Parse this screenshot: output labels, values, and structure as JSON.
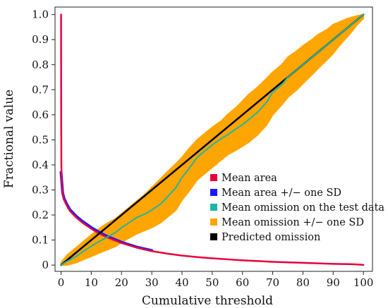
{
  "chart_data": {
    "type": "line",
    "xlabel": "Cumulative  threshold",
    "ylabel": "Fractional value",
    "xlim": [
      -2,
      103
    ],
    "ylim": [
      -0.025,
      1.03
    ],
    "xticks": [
      0,
      10,
      20,
      30,
      40,
      50,
      60,
      70,
      80,
      90,
      100
    ],
    "yticks": [
      0,
      0.1,
      0.2,
      0.3,
      0.4,
      0.5,
      0.6,
      0.7,
      0.8,
      0.9,
      1.0
    ],
    "xtick_labels": [
      "0",
      "10",
      "20",
      "30",
      "40",
      "50",
      "60",
      "70",
      "80",
      "90",
      "100"
    ],
    "ytick_labels": [
      "0",
      "0.1",
      "0.2",
      "0.3",
      "0.4",
      "0.5",
      "0.6",
      "0.7",
      "0.8",
      "0.9",
      "1.0"
    ],
    "grid": false,
    "legend_position": "lower-right",
    "series": [
      {
        "name": "Mean area",
        "color": "#e8003a",
        "x": [
          0,
          0.02,
          0.05,
          0.1,
          0.2,
          0.3,
          0.5,
          1,
          2,
          3,
          5,
          7,
          10,
          12,
          15,
          20,
          25,
          30,
          35,
          40,
          45,
          50,
          55,
          60,
          65,
          70,
          75,
          80,
          85,
          90,
          95,
          97,
          100
        ],
        "y": [
          1.0,
          0.75,
          0.55,
          0.4,
          0.34,
          0.31,
          0.285,
          0.26,
          0.235,
          0.215,
          0.19,
          0.17,
          0.145,
          0.13,
          0.112,
          0.088,
          0.07,
          0.056,
          0.046,
          0.038,
          0.032,
          0.027,
          0.023,
          0.019,
          0.016,
          0.013,
          0.011,
          0.009,
          0.007,
          0.005,
          0.004,
          0.003,
          0.001
        ]
      },
      {
        "name": "Mean area +/− one SD",
        "color": "#1a1aff",
        "x": [
          0,
          0.5,
          1,
          2,
          3,
          5,
          7,
          10,
          12,
          15,
          20,
          25,
          30
        ],
        "y": [
          0.37,
          0.29,
          0.265,
          0.24,
          0.22,
          0.195,
          0.175,
          0.15,
          0.135,
          0.116,
          0.091,
          0.072,
          0.058
        ]
      },
      {
        "name": "Mean omission on the test data",
        "color": "#1fb5a5",
        "x": [
          0,
          2,
          5,
          8,
          10,
          12,
          15,
          18,
          20,
          22,
          25,
          28,
          30,
          33,
          35,
          38,
          40,
          42,
          45,
          48,
          50,
          53,
          55,
          58,
          60,
          62,
          65,
          68,
          70,
          73,
          75,
          78,
          80,
          83,
          85,
          88,
          90,
          93,
          95,
          98,
          100
        ],
        "y": [
          0.0,
          0.015,
          0.035,
          0.06,
          0.075,
          0.09,
          0.11,
          0.13,
          0.15,
          0.165,
          0.19,
          0.205,
          0.22,
          0.245,
          0.27,
          0.31,
          0.35,
          0.38,
          0.43,
          0.46,
          0.48,
          0.505,
          0.52,
          0.545,
          0.56,
          0.58,
          0.61,
          0.65,
          0.69,
          0.72,
          0.75,
          0.78,
          0.8,
          0.83,
          0.85,
          0.88,
          0.9,
          0.93,
          0.95,
          0.98,
          1.0
        ]
      },
      {
        "name": "Mean omission +/− one SD",
        "color": "#ffa500",
        "x": [
          0,
          2,
          5,
          8,
          10,
          12,
          15,
          18,
          20,
          22,
          25,
          28,
          30,
          33,
          35,
          38,
          40,
          42,
          45,
          48,
          50,
          53,
          55,
          58,
          60,
          62,
          65,
          68,
          70,
          73,
          75,
          78,
          80,
          83,
          85,
          88,
          90,
          93,
          95,
          98,
          100
        ],
        "upper": [
          0.01,
          0.04,
          0.07,
          0.1,
          0.12,
          0.14,
          0.165,
          0.185,
          0.205,
          0.225,
          0.255,
          0.285,
          0.31,
          0.345,
          0.37,
          0.405,
          0.43,
          0.46,
          0.5,
          0.53,
          0.55,
          0.575,
          0.6,
          0.63,
          0.655,
          0.68,
          0.71,
          0.745,
          0.77,
          0.8,
          0.83,
          0.855,
          0.875,
          0.9,
          0.92,
          0.94,
          0.96,
          0.975,
          0.985,
          0.995,
          1.0
        ],
        "lower": [
          0.0,
          0.0,
          0.01,
          0.025,
          0.035,
          0.045,
          0.06,
          0.075,
          0.09,
          0.105,
          0.125,
          0.14,
          0.15,
          0.17,
          0.19,
          0.22,
          0.26,
          0.29,
          0.34,
          0.37,
          0.39,
          0.42,
          0.44,
          0.46,
          0.475,
          0.49,
          0.52,
          0.56,
          0.6,
          0.64,
          0.67,
          0.7,
          0.725,
          0.76,
          0.785,
          0.82,
          0.845,
          0.89,
          0.915,
          0.96,
          0.985
        ]
      },
      {
        "name": "Predicted omission",
        "color": "#000000",
        "x": [
          0,
          100
        ],
        "y": [
          0,
          1
        ]
      }
    ],
    "legend": {
      "items": [
        {
          "label": "Mean area",
          "color": "#e8003a"
        },
        {
          "label": "Mean area +/− one SD",
          "color": "#1a1aff"
        },
        {
          "label": "Mean omission on the test data",
          "color": "#1fb5a5"
        },
        {
          "label": "Mean omission +/− one SD",
          "color": "#ffa500"
        },
        {
          "label": "Predicted omission",
          "color": "#000000"
        }
      ]
    }
  }
}
